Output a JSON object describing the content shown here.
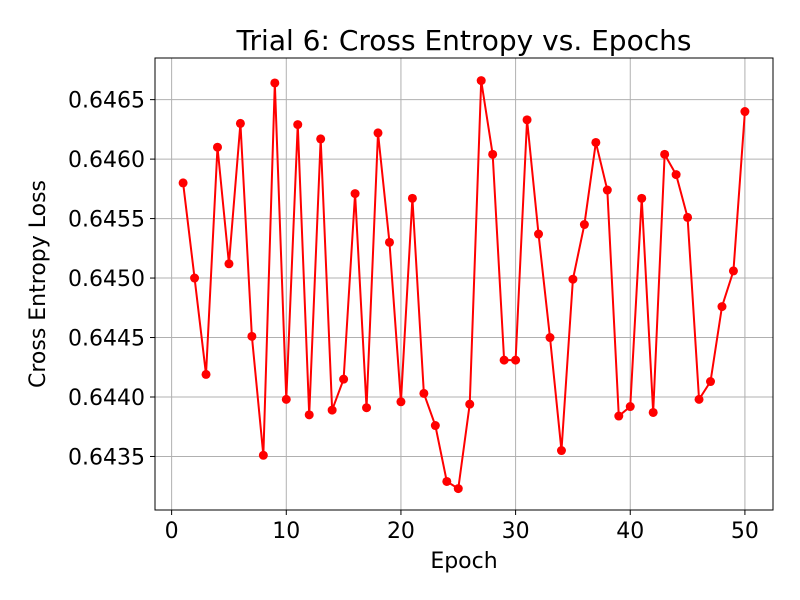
{
  "chart_data": {
    "type": "line",
    "title": "Trial 6: Cross Entropy vs. Epochs",
    "xlabel": "Epoch",
    "ylabel": "Cross Entropy Loss",
    "xlim": [
      -1.45,
      52.45
    ],
    "ylim": [
      0.64305,
      0.64685
    ],
    "xticks": [
      0,
      10,
      20,
      30,
      40,
      50
    ],
    "yticks": [
      0.6435,
      0.644,
      0.6445,
      0.645,
      0.6455,
      0.646,
      0.6465
    ],
    "ytick_labels": [
      "0.6435",
      "0.6440",
      "0.6445",
      "0.6450",
      "0.6455",
      "0.6460",
      "0.6465"
    ],
    "grid": true,
    "series": [
      {
        "color": "#ff0000",
        "marker": "circle",
        "x": [
          1,
          2,
          3,
          4,
          5,
          6,
          7,
          8,
          9,
          10,
          11,
          12,
          13,
          14,
          15,
          16,
          17,
          18,
          19,
          20,
          21,
          22,
          23,
          24,
          25,
          26,
          27,
          28,
          29,
          30,
          31,
          32,
          33,
          34,
          35,
          36,
          37,
          38,
          39,
          40,
          41,
          42,
          43,
          44,
          45,
          46,
          47,
          48,
          49,
          50
        ],
        "y": [
          0.6458,
          0.645,
          0.64419,
          0.6461,
          0.64512,
          0.6463,
          0.64451,
          0.64351,
          0.64664,
          0.64398,
          0.64629,
          0.64385,
          0.64617,
          0.64389,
          0.64415,
          0.64571,
          0.64391,
          0.64622,
          0.6453,
          0.64396,
          0.64567,
          0.64403,
          0.64376,
          0.64329,
          0.64323,
          0.64394,
          0.64666,
          0.64604,
          0.64431,
          0.64431,
          0.64633,
          0.64537,
          0.6445,
          0.64355,
          0.64499,
          0.64545,
          0.64614,
          0.64574,
          0.64384,
          0.64392,
          0.64567,
          0.64387,
          0.64604,
          0.64587,
          0.64551,
          0.64398,
          0.64413,
          0.64476,
          0.64506,
          0.6464
        ]
      }
    ]
  }
}
